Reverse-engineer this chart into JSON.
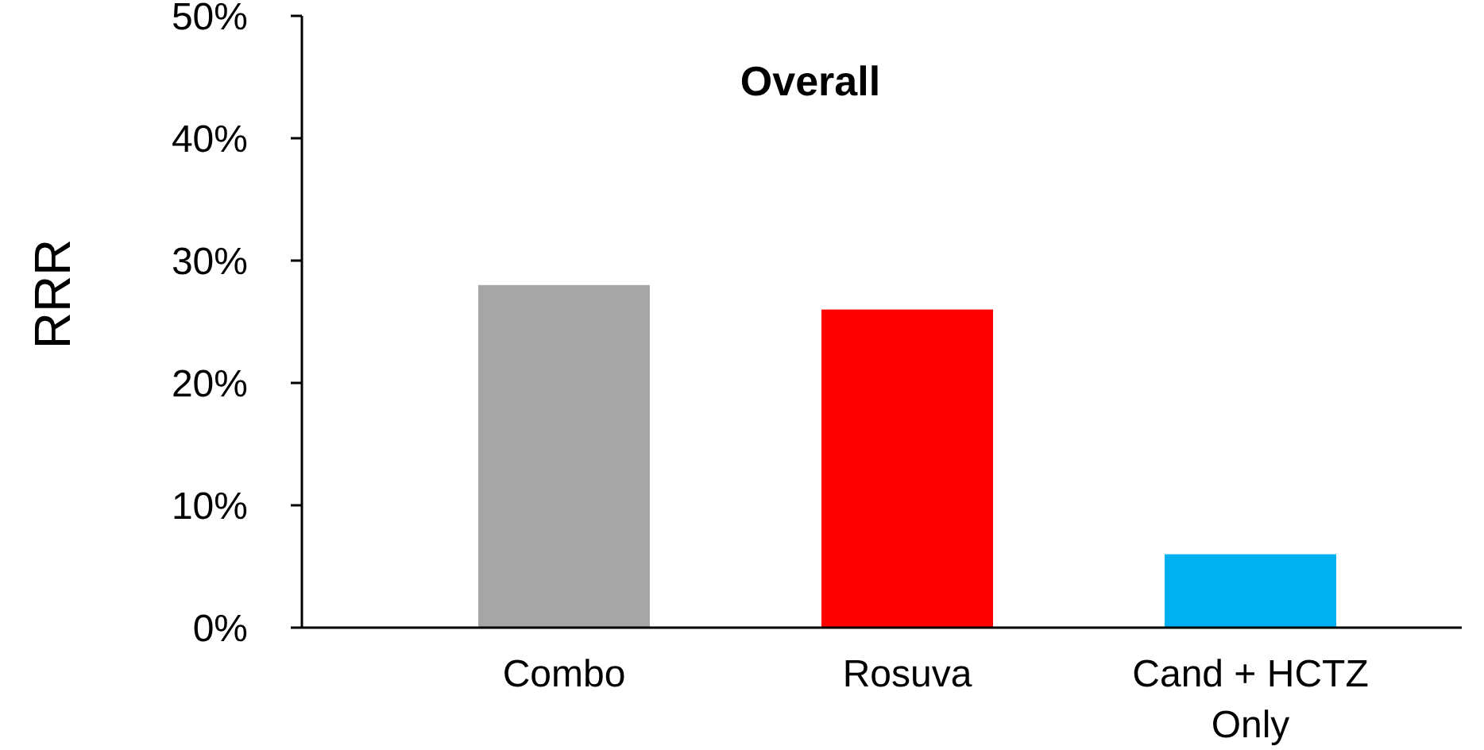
{
  "chart_data": {
    "type": "bar",
    "title": "Overall",
    "ylabel": "RRR",
    "categories": [
      "Combo",
      "Rosuva",
      "Cand + HCTZ Only"
    ],
    "values": [
      28,
      26,
      6
    ],
    "colors": [
      "#a6a6a6",
      "#ff0000",
      "#00b0f0"
    ],
    "ylim": [
      0,
      50
    ],
    "yticks": [
      {
        "value": 0,
        "label": "0%"
      },
      {
        "value": 10,
        "label": "10%"
      },
      {
        "value": 20,
        "label": "20%"
      },
      {
        "value": 30,
        "label": "30%"
      },
      {
        "value": 40,
        "label": "40%"
      },
      {
        "value": 50,
        "label": "50%"
      }
    ],
    "data_labels": false
  }
}
